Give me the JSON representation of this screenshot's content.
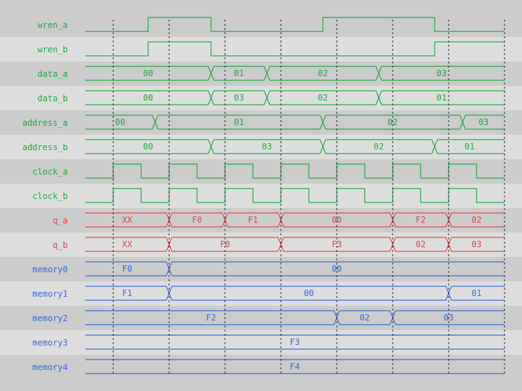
{
  "colors": {
    "green": "#22a844",
    "red": "#e04848",
    "blue": "#3a6ad8",
    "band_dark": "#cccccc",
    "band_light": "#dddddd",
    "grid": "#222222"
  },
  "time": {
    "start": 0,
    "end": 15,
    "unit": "half clock period",
    "grid_edges": [
      1,
      3,
      5,
      7,
      9,
      11,
      13,
      15
    ]
  },
  "signals": [
    {
      "name": "wren_a",
      "kind": "bit",
      "color": "green",
      "edges": [
        [
          0,
          0
        ],
        [
          2.25,
          1
        ],
        [
          4.5,
          0
        ],
        [
          8.5,
          1
        ],
        [
          12.5,
          0
        ]
      ]
    },
    {
      "name": "wren_b",
      "kind": "bit",
      "color": "green",
      "edges": [
        [
          0,
          0
        ],
        [
          2.25,
          1
        ],
        [
          4.5,
          0
        ],
        [
          12.5,
          1
        ]
      ]
    },
    {
      "name": "data_a",
      "kind": "bus",
      "color": "green",
      "edges": [
        [
          0,
          "00"
        ],
        [
          4.5,
          "01"
        ],
        [
          6.5,
          "02"
        ],
        [
          10.5,
          "03"
        ]
      ]
    },
    {
      "name": "data_b",
      "kind": "bus",
      "color": "green",
      "edges": [
        [
          0,
          "00"
        ],
        [
          4.5,
          "03"
        ],
        [
          6.5,
          "02"
        ],
        [
          10.5,
          "01"
        ]
      ]
    },
    {
      "name": "address_a",
      "kind": "bus",
      "color": "green",
      "edges": [
        [
          0,
          "00"
        ],
        [
          2.5,
          "01"
        ],
        [
          8.5,
          "02"
        ],
        [
          13.5,
          "03"
        ]
      ]
    },
    {
      "name": "address_b",
      "kind": "bus",
      "color": "green",
      "edges": [
        [
          0,
          "00"
        ],
        [
          4.5,
          "03"
        ],
        [
          8.5,
          "02"
        ],
        [
          12.5,
          "01"
        ]
      ]
    },
    {
      "name": "clock_a",
      "kind": "clock",
      "color": "green",
      "first_rise": 1,
      "period": 2
    },
    {
      "name": "clock_b",
      "kind": "clock",
      "color": "green",
      "first_rise": 1,
      "period": 2
    },
    {
      "name": "q_a",
      "kind": "bus",
      "color": "red",
      "edges": [
        [
          0,
          "XX"
        ],
        [
          3,
          "F0"
        ],
        [
          5,
          "F1"
        ],
        [
          7,
          "00"
        ],
        [
          11,
          "F2"
        ],
        [
          13,
          "02"
        ]
      ]
    },
    {
      "name": "q_b",
      "kind": "bus",
      "color": "red",
      "edges": [
        [
          0,
          "XX"
        ],
        [
          3,
          "F0"
        ],
        [
          7,
          "F3"
        ],
        [
          11,
          "02"
        ],
        [
          13,
          "03"
        ]
      ]
    },
    {
      "name": "memory0",
      "kind": "bus",
      "color": "blue",
      "edges": [
        [
          0,
          "F0"
        ],
        [
          3,
          "00"
        ]
      ]
    },
    {
      "name": "memory1",
      "kind": "bus",
      "color": "blue",
      "edges": [
        [
          0,
          "F1"
        ],
        [
          3,
          "00"
        ],
        [
          13,
          "01"
        ]
      ]
    },
    {
      "name": "memory2",
      "kind": "bus",
      "color": "blue",
      "edges": [
        [
          0,
          "F2"
        ],
        [
          9,
          "02"
        ],
        [
          11,
          "03"
        ]
      ]
    },
    {
      "name": "memory3",
      "kind": "bus",
      "color": "blue",
      "edges": [
        [
          0,
          "F3"
        ]
      ]
    },
    {
      "name": "memory4",
      "kind": "bus",
      "color": "blue",
      "edges": [
        [
          0,
          "F4"
        ]
      ]
    }
  ]
}
